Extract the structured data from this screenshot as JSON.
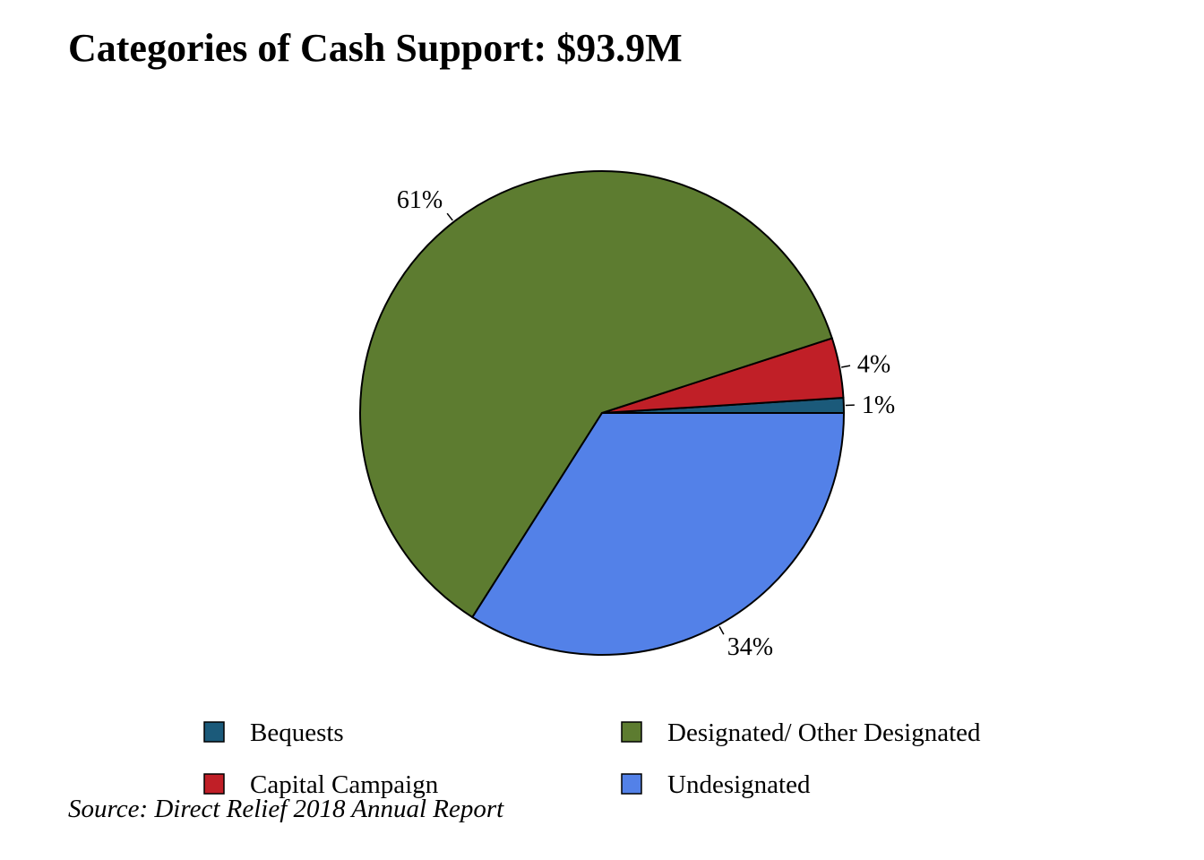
{
  "chart_data": {
    "type": "pie",
    "title": "Categories of Cash Support: $93.9M",
    "source": "Source: Direct Relief 2018 Annual Report",
    "categories": [
      "Bequests",
      "Capital Campaign",
      "Designated/ Other Designated",
      "Undesignated"
    ],
    "values": [
      1,
      4,
      61,
      34
    ],
    "value_labels": [
      "1%",
      "4%",
      "61%",
      "34%"
    ],
    "colors": [
      "#1b5a7a",
      "#c01f27",
      "#5d7c30",
      "#5381e8"
    ],
    "legend": {
      "placement": "bottom",
      "columns": 2,
      "entries": [
        "Bequests",
        "Designated/ Other Designated",
        "Capital Campaign",
        "Undesignated"
      ]
    }
  }
}
